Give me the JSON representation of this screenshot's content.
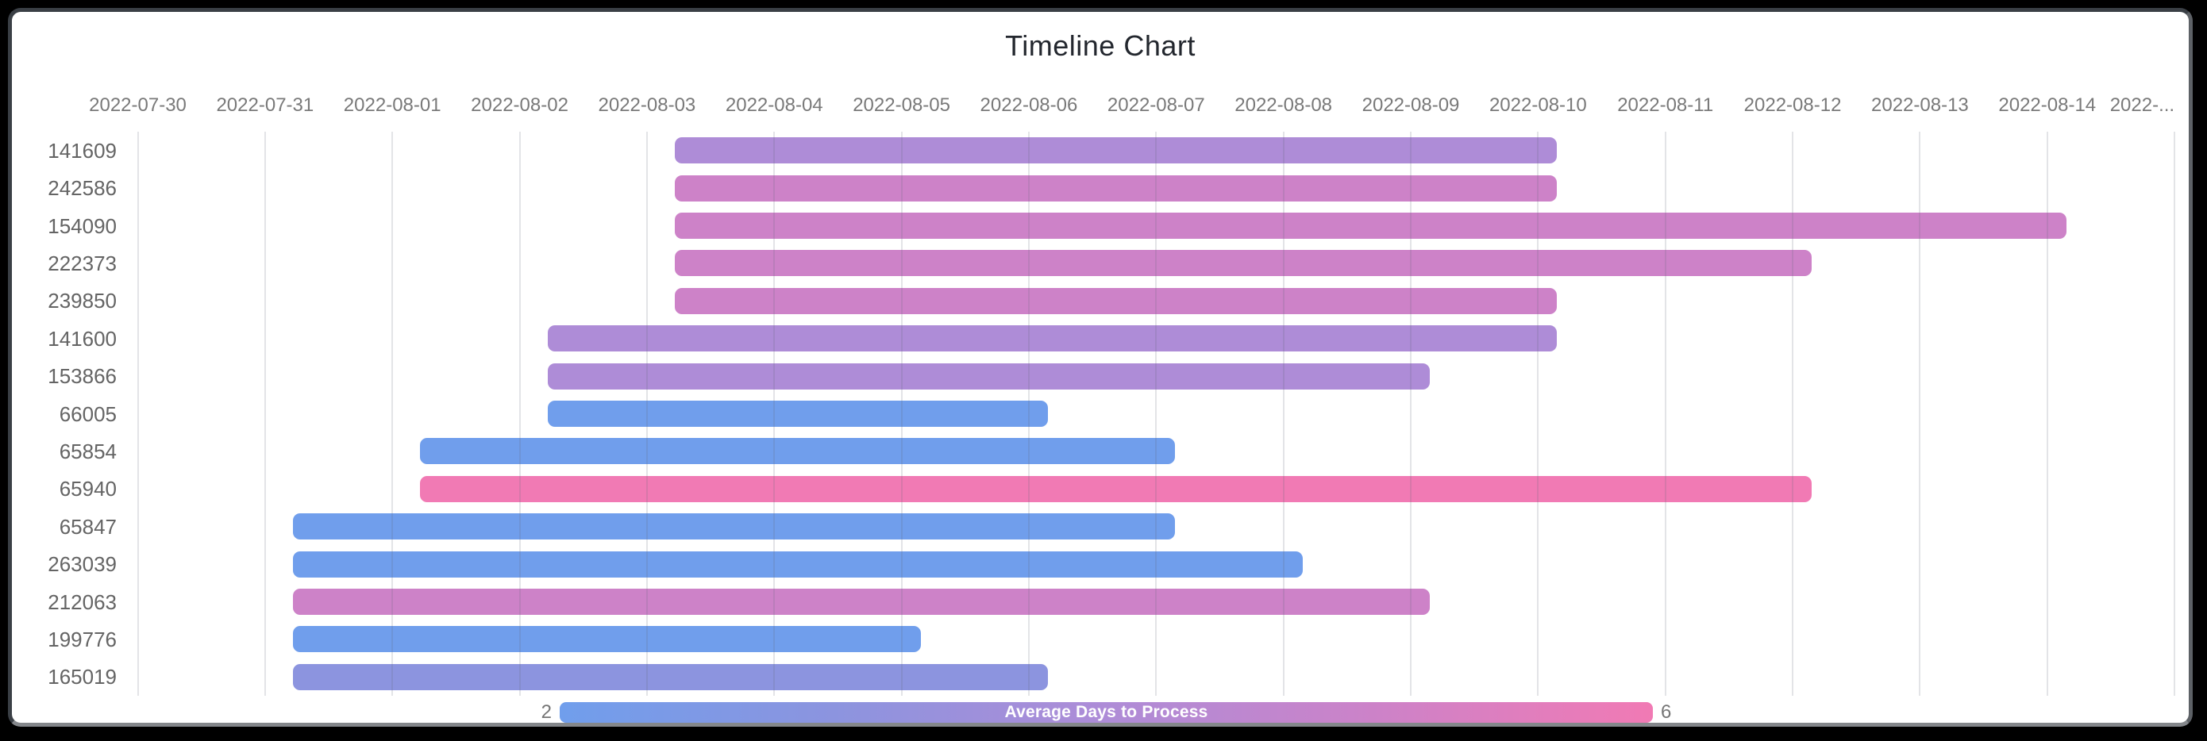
{
  "title": "Timeline Chart",
  "axis": {
    "start_date": "2022-07-30",
    "tick_labels": [
      "2022-07-30",
      "2022-07-31",
      "2022-08-01",
      "2022-08-02",
      "2022-08-03",
      "2022-08-04",
      "2022-08-05",
      "2022-08-06",
      "2022-08-07",
      "2022-08-08",
      "2022-08-09",
      "2022-08-10",
      "2022-08-11",
      "2022-08-12",
      "2022-08-13",
      "2022-08-14",
      "2022-..."
    ]
  },
  "legend": {
    "label": "Average Days to Process",
    "min": "2",
    "max": "6"
  },
  "value_colors": {
    "2": "#709eec",
    "3": "#8c94df",
    "4": "#ae8cd7",
    "5": "#cd82c8",
    "6": "#f17ab4"
  },
  "chart_data": {
    "type": "timeline",
    "title": "Timeline Chart",
    "x_axis": {
      "type": "date",
      "range": [
        "2022-07-30",
        "2022-08-15"
      ],
      "grid": true
    },
    "color_legend": {
      "label": "Average Days to Process",
      "min": 2,
      "max": 6
    },
    "rows": [
      {
        "id": "141609",
        "start": "2022-08-03",
        "end": "2022-08-10",
        "avg_days_to_process": 4
      },
      {
        "id": "242586",
        "start": "2022-08-03",
        "end": "2022-08-10",
        "avg_days_to_process": 5
      },
      {
        "id": "154090",
        "start": "2022-08-03",
        "end": "2022-08-14",
        "avg_days_to_process": 5
      },
      {
        "id": "222373",
        "start": "2022-08-03",
        "end": "2022-08-12",
        "avg_days_to_process": 5
      },
      {
        "id": "239850",
        "start": "2022-08-03",
        "end": "2022-08-10",
        "avg_days_to_process": 5
      },
      {
        "id": "141600",
        "start": "2022-08-02",
        "end": "2022-08-10",
        "avg_days_to_process": 4
      },
      {
        "id": "153866",
        "start": "2022-08-02",
        "end": "2022-08-09",
        "avg_days_to_process": 4
      },
      {
        "id": "66005",
        "start": "2022-08-02",
        "end": "2022-08-06",
        "avg_days_to_process": 2
      },
      {
        "id": "65854",
        "start": "2022-08-01",
        "end": "2022-08-07",
        "avg_days_to_process": 2
      },
      {
        "id": "65940",
        "start": "2022-08-01",
        "end": "2022-08-12",
        "avg_days_to_process": 6
      },
      {
        "id": "65847",
        "start": "2022-07-31",
        "end": "2022-08-07",
        "avg_days_to_process": 2
      },
      {
        "id": "263039",
        "start": "2022-07-31",
        "end": "2022-08-08",
        "avg_days_to_process": 2
      },
      {
        "id": "212063",
        "start": "2022-07-31",
        "end": "2022-08-09",
        "avg_days_to_process": 5
      },
      {
        "id": "199776",
        "start": "2022-07-31",
        "end": "2022-08-05",
        "avg_days_to_process": 2
      },
      {
        "id": "165019",
        "start": "2022-07-31",
        "end": "2022-08-06",
        "avg_days_to_process": 3
      }
    ]
  }
}
